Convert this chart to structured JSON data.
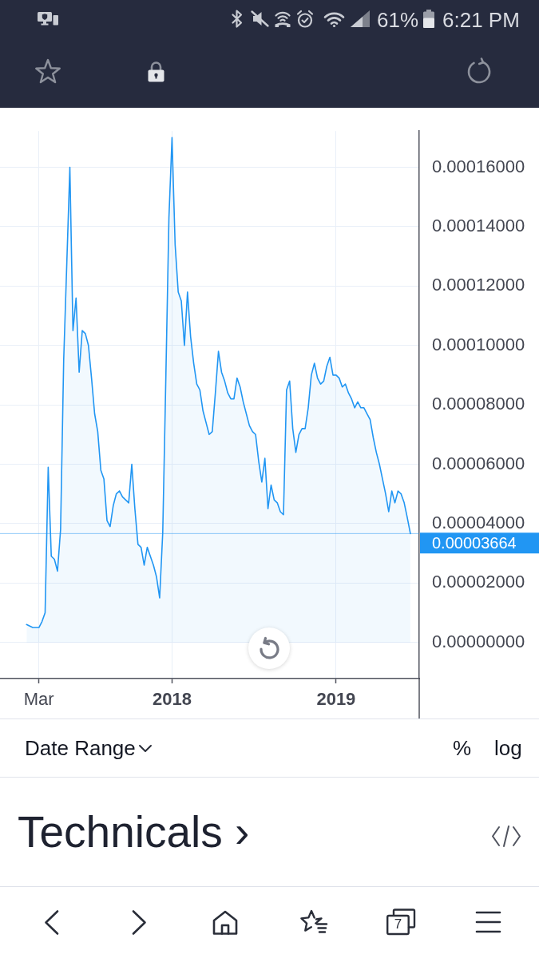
{
  "chart_data": {
    "type": "area",
    "color": "#2196f3",
    "x": [
      "2017-02-06",
      "2017-02-20",
      "2017-02-27",
      "2017-03-06",
      "2017-03-13",
      "2017-03-20",
      "2017-03-27",
      "2017-04-03",
      "2017-04-10",
      "2017-04-17",
      "2017-04-24",
      "2017-05-01",
      "2017-05-15",
      "2017-05-22",
      "2017-05-29",
      "2017-06-05",
      "2017-06-12",
      "2017-06-19",
      "2017-06-26",
      "2017-07-03",
      "2017-07-10",
      "2017-07-17",
      "2017-07-24",
      "2017-07-31",
      "2017-08-07",
      "2017-08-14",
      "2017-08-21",
      "2017-08-28",
      "2017-09-04",
      "2017-09-11",
      "2017-09-18",
      "2017-09-25",
      "2017-10-02",
      "2017-10-09",
      "2017-10-16",
      "2017-10-23",
      "2017-10-30",
      "2017-11-06",
      "2017-11-13",
      "2017-11-20",
      "2017-11-27",
      "2017-12-04",
      "2017-12-11",
      "2017-12-18",
      "2017-12-25",
      "2018-01-01",
      "2018-01-08",
      "2018-01-15",
      "2018-01-22",
      "2018-01-29",
      "2018-02-05",
      "2018-02-12",
      "2018-02-19",
      "2018-02-26",
      "2018-03-05",
      "2018-03-12",
      "2018-03-19",
      "2018-03-26",
      "2018-04-02",
      "2018-04-09",
      "2018-04-16",
      "2018-04-23",
      "2018-04-30",
      "2018-05-07",
      "2018-05-14",
      "2018-05-21",
      "2018-05-28",
      "2018-06-04",
      "2018-06-11",
      "2018-06-18",
      "2018-06-25",
      "2018-07-02",
      "2018-07-09",
      "2018-07-16",
      "2018-07-23",
      "2018-07-30",
      "2018-08-06",
      "2018-08-13",
      "2018-08-20",
      "2018-08-27",
      "2018-09-03",
      "2018-09-10",
      "2018-09-17",
      "2018-09-24",
      "2018-10-01",
      "2018-10-08",
      "2018-10-15",
      "2018-10-22",
      "2018-10-29",
      "2018-11-05",
      "2018-11-12",
      "2018-11-19",
      "2018-11-26",
      "2018-12-03",
      "2018-12-10",
      "2018-12-17",
      "2018-12-24",
      "2018-12-31",
      "2019-01-07",
      "2019-01-14",
      "2019-01-21",
      "2019-01-28",
      "2019-02-04",
      "2019-02-11",
      "2019-02-18",
      "2019-02-25",
      "2019-03-04",
      "2019-03-11",
      "2019-03-18",
      "2019-03-25",
      "2019-04-01",
      "2019-04-08",
      "2019-04-15",
      "2019-04-22",
      "2019-04-29",
      "2019-05-06",
      "2019-05-13",
      "2019-05-20",
      "2019-05-27",
      "2019-06-03",
      "2019-06-10",
      "2019-06-17",
      "2019-06-24"
    ],
    "values": [
      6e-06,
      5e-06,
      5e-06,
      5e-06,
      7e-06,
      1e-05,
      5.9e-05,
      2.9e-05,
      2.8e-05,
      2.4e-05,
      3.8e-05,
      9.5e-05,
      0.00016,
      0.000105,
      0.000116,
      9.1e-05,
      0.000105,
      0.000104,
      0.0001,
      8.9e-05,
      7.7e-05,
      7.1e-05,
      5.8e-05,
      5.5e-05,
      4.1e-05,
      3.9e-05,
      4.6e-05,
      5e-05,
      5.1e-05,
      4.9e-05,
      4.8e-05,
      4.7e-05,
      6e-05,
      4.5e-05,
      3.3e-05,
      3.2e-05,
      2.6e-05,
      3.2e-05,
      2.9e-05,
      2.6e-05,
      2.2e-05,
      1.5e-05,
      3.7e-05,
      8.9e-05,
      0.000143,
      0.00017,
      0.000134,
      0.000118,
      0.000115,
      0.0001,
      0.000118,
      0.000103,
      9.4e-05,
      8.7e-05,
      8.5e-05,
      7.8e-05,
      7.4e-05,
      7e-05,
      7.1e-05,
      8.4e-05,
      9.8e-05,
      9.1e-05,
      8.8e-05,
      8.4e-05,
      8.2e-05,
      8.2e-05,
      8.9e-05,
      8.6e-05,
      8.1e-05,
      7.7e-05,
      7.3e-05,
      7.1e-05,
      7e-05,
      6.1e-05,
      5.4e-05,
      6.2e-05,
      4.5e-05,
      5.3e-05,
      4.8e-05,
      4.7e-05,
      4.4e-05,
      4.3e-05,
      8.5e-05,
      8.8e-05,
      7.2e-05,
      6.4e-05,
      7e-05,
      7.2e-05,
      7.2e-05,
      7.9e-05,
      9e-05,
      9.4e-05,
      8.9e-05,
      8.7e-05,
      8.8e-05,
      9.3e-05,
      9.6e-05,
      9e-05,
      9e-05,
      8.9e-05,
      8.6e-05,
      8.7e-05,
      8.4e-05,
      8.2e-05,
      7.9e-05,
      8.1e-05,
      7.9e-05,
      7.9e-05,
      7.7e-05,
      7.5e-05,
      6.9e-05,
      6.4e-05,
      6e-05,
      5.5e-05,
      5e-05,
      4.4e-05,
      5.1e-05,
      4.7e-05,
      5.1e-05,
      5e-05,
      4.7e-05,
      4.2e-05,
      3.664e-05
    ],
    "xlim": [
      "2016-12-08",
      "2019-07-14"
    ],
    "xticks": [
      {
        "value": "2017-03-06",
        "label": "Mar"
      },
      {
        "value": "2018-01-01",
        "label": "2018"
      },
      {
        "value": "2019-01-07",
        "label": "2019"
      }
    ],
    "ylim": [
      -1.22e-05,
      0.0001722
    ],
    "yticks": [
      {
        "value": 0,
        "label": "0.00000000"
      },
      {
        "value": 2e-05,
        "label": "0.00002000"
      },
      {
        "value": 4e-05,
        "label": "0.00004000"
      },
      {
        "value": 6e-05,
        "label": "0.00006000"
      },
      {
        "value": 8e-05,
        "label": "0.00008000"
      },
      {
        "value": 0.0001,
        "label": "0.00010000"
      },
      {
        "value": 0.00012,
        "label": "0.00012000"
      },
      {
        "value": 0.00014,
        "label": "0.00014000"
      },
      {
        "value": 0.00016,
        "label": "0.00016000"
      }
    ],
    "grid": true,
    "ref_lines": [
      {
        "axis": "y",
        "value": 3.664e-05,
        "label": "0.00003664",
        "color": "#2196f3"
      }
    ],
    "annotations": [
      "61%",
      "6:21 PM",
      "Date Range",
      "%",
      "log",
      "Technicals ›",
      "7"
    ]
  }
}
